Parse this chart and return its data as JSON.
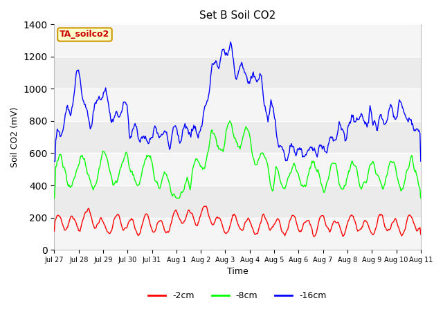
{
  "title": "Set B Soil CO2",
  "ylabel": "Soil CO2 (mV)",
  "xlabel": "Time",
  "annotation_text": "TA_soilco2",
  "annotation_bg": "#ffffcc",
  "annotation_edge": "#cc9900",
  "annotation_text_color": "#cc0000",
  "ylim": [
    0,
    1400
  ],
  "yticks": [
    0,
    200,
    400,
    600,
    800,
    1000,
    1200,
    1400
  ],
  "legend_labels": [
    "-2cm",
    "-8cm",
    "-16cm"
  ],
  "legend_colors": [
    "red",
    "lime",
    "blue"
  ],
  "plot_bg": "#ebebeb",
  "fig_bg": "#ffffff",
  "grid_color": "#ffffff",
  "tick_labels": [
    "Jul 27",
    "Jul 28",
    "Jul 29",
    "Jul 30",
    "Jul 31",
    "Aug 1",
    "Aug 2",
    "Aug 3",
    "Aug 4",
    "Aug 5",
    "Aug 6",
    "Aug 7",
    "Aug 8",
    "Aug 9",
    "Aug 10",
    "Aug 11"
  ],
  "n_points": 500
}
